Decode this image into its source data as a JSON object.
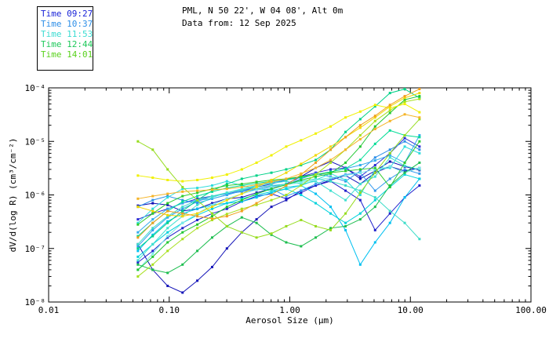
{
  "header": {
    "line1": "PML, N 50 22', W 04 08', Alt 0m",
    "line2": "Data from: 12 Sep 2025"
  },
  "legend": {
    "items": [
      {
        "label": "Time 09:27",
        "color": "#1A24D8"
      },
      {
        "label": "Time 10:37",
        "color": "#2E8FE8"
      },
      {
        "label": "Time 11:53",
        "color": "#3CDCD2"
      },
      {
        "label": "Time 12:44",
        "color": "#1EC85A"
      },
      {
        "label": "Time 14:01",
        "color": "#5AD21E"
      }
    ]
  },
  "chart_data": {
    "type": "line",
    "title": "PML, N 50 22', W 04 08', Alt 0m",
    "subtitle": "Data from: 12 Sep 2025",
    "xlabel": "Aerosol Size (μm)",
    "ylabel": "dV/d(log R) (cm³/cm⁻²)",
    "x_scale": "log",
    "y_scale": "log",
    "xlim": [
      0.01,
      100
    ],
    "ylim": [
      1e-08,
      0.0001
    ],
    "grid": false,
    "legend_position": "top-left",
    "x_ticks": [
      {
        "v": 0.01,
        "label": "0.01"
      },
      {
        "v": 0.1,
        "label": "0.10"
      },
      {
        "v": 1.0,
        "label": "1.00"
      },
      {
        "v": 10.0,
        "label": "10.00"
      },
      {
        "v": 100.0,
        "label": "100.00"
      }
    ],
    "y_ticks": [
      {
        "v": 0.0001,
        "label": "10⁻⁴"
      },
      {
        "v": 1e-05,
        "label": "10⁻⁵"
      },
      {
        "v": 1e-06,
        "label": "10⁻⁶"
      },
      {
        "v": 1e-07,
        "label": "10⁻⁷"
      },
      {
        "v": 1e-08,
        "label": "10⁻⁸"
      }
    ],
    "x": [
      0.055,
      0.073,
      0.097,
      0.129,
      0.171,
      0.227,
      0.301,
      0.4,
      0.53,
      0.704,
      0.934,
      1.24,
      1.64,
      2.18,
      2.9,
      3.84,
      5.1,
      6.77,
      8.98,
      11.9
    ],
    "series": [
      {
        "name": "navy-dip",
        "color": "#1414B8",
        "values": [
          1.2e-07,
          4e-08,
          2e-08,
          1.5e-08,
          2.5e-08,
          4.5e-08,
          1e-07,
          2e-07,
          3.5e-07,
          6e-07,
          8e-07,
          1.2e-06,
          1.5e-06,
          1.9e-06,
          2.3e-06,
          1.6e-06,
          2.6e-06,
          3.4e-06,
          2.8e-06,
          3.2e-06
        ]
      },
      {
        "name": "navy-2",
        "color": "#0F0FB4",
        "values": [
          6.3e-07,
          7e-07,
          6.5e-07,
          5e-07,
          5.5e-07,
          7e-07,
          8.5e-07,
          9e-07,
          1.1e-06,
          1.3e-06,
          1.6e-06,
          2.2e-06,
          3.2e-06,
          4.2e-06,
          3.2e-06,
          2e-06,
          2.8e-06,
          4.2e-06,
          3.4e-06,
          2.9e-06
        ]
      },
      {
        "name": "navy-3",
        "color": "#2020CC",
        "values": [
          5.5e-08,
          9e-08,
          1.6e-07,
          2.4e-07,
          3.4e-07,
          4.5e-07,
          5.5e-07,
          7.5e-07,
          9.5e-07,
          1.05e-06,
          8.5e-07,
          1.1e-06,
          1.5e-06,
          1.8e-06,
          1.2e-06,
          8e-07,
          2.2e-07,
          4.5e-07,
          9e-07,
          1.5e-06
        ]
      },
      {
        "name": "navy-4",
        "color": "#2B2BD4",
        "values": [
          3.5e-07,
          4.5e-07,
          5.5e-07,
          7e-07,
          8.5e-07,
          9.5e-07,
          1.05e-06,
          1.2e-06,
          1.4e-06,
          1.6e-06,
          1.9e-06,
          2.2e-06,
          2.6e-06,
          3e-06,
          3.2e-06,
          2.2e-06,
          3.6e-06,
          6e-06,
          1.15e-05,
          8e-06
        ]
      },
      {
        "name": "dodger-1",
        "color": "#2E8FE8",
        "values": [
          6e-07,
          8e-07,
          9.5e-07,
          8e-07,
          7e-07,
          8.5e-07,
          1e-06,
          1.2e-06,
          1.3e-06,
          1.45e-06,
          1.55e-06,
          2e-06,
          2.5e-06,
          2.2e-06,
          1.8e-06,
          2.8e-06,
          5e-06,
          7e-06,
          1e-05,
          7e-06
        ]
      },
      {
        "name": "dodger-2",
        "color": "#3399EE",
        "values": [
          1.1e-07,
          2.2e-07,
          3.8e-07,
          5.5e-07,
          7.5e-07,
          9.5e-07,
          1.05e-06,
          1.15e-06,
          1.25e-06,
          1.3e-06,
          9.5e-07,
          1.2e-06,
          1.6e-06,
          2e-06,
          2.4e-06,
          2.6e-06,
          1.2e-06,
          2e-06,
          3e-06,
          2.5e-06
        ]
      },
      {
        "name": "lightblue",
        "color": "#33AAEE",
        "values": [
          2e-07,
          3.5e-07,
          5.5e-07,
          7e-07,
          8e-07,
          8.5e-07,
          1e-06,
          1.2e-06,
          1.5e-06,
          1.7e-06,
          1.9e-06,
          2.1e-06,
          2.4e-06,
          2.7e-06,
          3.1e-06,
          3.6e-06,
          4.4e-06,
          5.5e-06,
          4e-06,
          1.3e-05
        ]
      },
      {
        "name": "aqua-dip",
        "color": "#00C0F0",
        "values": [
          9e-08,
          1.8e-07,
          3.2e-07,
          4.5e-07,
          5.5e-07,
          6.5e-07,
          7e-07,
          7.5e-07,
          9e-07,
          1.1e-06,
          1.3e-06,
          1.5e-06,
          1.05e-06,
          6e-07,
          2.2e-07,
          5e-08,
          1.3e-07,
          3e-07,
          9e-07,
          2e-06
        ]
      },
      {
        "name": "aqua-2",
        "color": "#00D2DC",
        "values": [
          7e-08,
          1.2e-07,
          2e-07,
          3e-07,
          4.2e-07,
          5.5e-07,
          7e-07,
          8.5e-07,
          1e-06,
          1.15e-06,
          1.3e-06,
          1e-06,
          7e-07,
          4.5e-07,
          3e-07,
          4.5e-07,
          8e-07,
          1.4e-06,
          2.4e-06,
          2e-06
        ]
      },
      {
        "name": "cyan-1",
        "color": "#2EDCDC",
        "values": [
          3e-07,
          5.5e-07,
          9e-07,
          1.3e-06,
          1.35e-06,
          1.5e-06,
          1.8e-06,
          1.5e-06,
          1.3e-06,
          1.2e-06,
          1.4e-06,
          1.5e-06,
          1.9e-06,
          2.5e-06,
          1.9e-06,
          1e-06,
          3e-06,
          3.2e-06,
          8e-06,
          6e-06
        ]
      },
      {
        "name": "turq-tail",
        "color": "#3CDCC8",
        "values": [
          1.2e-07,
          2.4e-07,
          4e-07,
          6e-07,
          8e-07,
          9.5e-07,
          1.1e-06,
          1.25e-06,
          1.4e-06,
          1.5e-06,
          1.6e-06,
          1.8e-06,
          2e-06,
          1.8e-06,
          1.5e-06,
          1.2e-06,
          9e-07,
          5e-07,
          3e-07,
          1.5e-07
        ]
      },
      {
        "name": "turq-2",
        "color": "#40E0D0",
        "values": [
          6e-08,
          1.2e-07,
          2.4e-07,
          4e-07,
          6.5e-07,
          9e-07,
          1.1e-06,
          1.3e-06,
          1.5e-06,
          1.65e-06,
          1.8e-06,
          1.6e-06,
          1.8e-06,
          1.2e-06,
          8e-07,
          1.6e-06,
          2.2e-06,
          5e-06,
          3.5e-06,
          3e-06
        ]
      },
      {
        "name": "palecyan",
        "color": "#7AE8E8",
        "values": [
          4e-08,
          8e-08,
          1.7e-07,
          3e-07,
          4.5e-07,
          6.5e-07,
          8.5e-07,
          1.05e-06,
          1.25e-06,
          1.4e-06,
          1.55e-06,
          1.7e-06,
          1.9e-06,
          2.1e-06,
          2.3e-06,
          2.6e-06,
          3e-06,
          3.4e-06,
          2.6e-06,
          3.2e-06
        ]
      },
      {
        "name": "spring-1",
        "color": "#00DC96",
        "values": [
          1.7e-07,
          3e-07,
          5e-07,
          7.5e-07,
          9.5e-07,
          1.15e-06,
          1.35e-06,
          1.5e-06,
          1.65e-06,
          1.8e-06,
          1.95e-06,
          2.1e-06,
          2.4e-06,
          2.7e-06,
          3.1e-06,
          4.5e-06,
          9e-06,
          1.6e-05,
          1.3e-05,
          1.2e-05
        ]
      },
      {
        "name": "spring-2",
        "color": "#00D287",
        "values": [
          1e-07,
          1.7e-07,
          3e-07,
          5e-07,
          8e-07,
          1.2e-06,
          1.6e-06,
          2e-06,
          2.3e-06,
          2.6e-06,
          3e-06,
          3.6e-06,
          4.5e-06,
          7e-06,
          1.5e-05,
          2.6e-05,
          4.5e-05,
          8e-05,
          9.5e-05,
          6.5e-05
        ]
      },
      {
        "name": "green-1",
        "color": "#22C832",
        "values": [
          4e-08,
          7e-08,
          1.3e-07,
          2e-07,
          2.8e-07,
          4e-07,
          6e-07,
          8e-07,
          1.05e-06,
          1.3e-06,
          1.55e-06,
          1.9e-06,
          2.2e-06,
          2.5e-06,
          4e-06,
          8e-06,
          1.9e-05,
          3.4e-05,
          6e-05,
          7e-05
        ]
      },
      {
        "name": "green-2",
        "color": "#2ECC2E",
        "values": [
          2.8e-07,
          4.5e-07,
          7e-07,
          9.5e-07,
          1.1e-06,
          1.3e-06,
          1.5e-06,
          1.6e-06,
          1.75e-06,
          1.9e-06,
          2e-06,
          2.2e-06,
          2.4e-06,
          2.6e-06,
          2.8e-06,
          3e-06,
          3.2e-06,
          1.4e-06,
          4e-06,
          1e-05
        ]
      },
      {
        "name": "green-dip",
        "color": "#1EBE50",
        "values": [
          5e-08,
          4e-08,
          3.5e-08,
          5e-08,
          9e-08,
          1.6e-07,
          2.6e-07,
          3.8e-07,
          3e-07,
          1.8e-07,
          1.3e-07,
          1.1e-07,
          1.6e-07,
          2.4e-07,
          2.6e-07,
          3.5e-07,
          6e-07,
          1.5e-06,
          2.6e-06,
          4e-06
        ]
      },
      {
        "name": "ygreen-desc",
        "color": "#96DC1E",
        "values": [
          1e-05,
          7e-06,
          3e-06,
          1.4e-06,
          8e-07,
          4.5e-07,
          2.6e-07,
          2e-07,
          1.6e-07,
          1.9e-07,
          2.6e-07,
          3.4e-07,
          2.6e-07,
          2.2e-07,
          4.5e-07,
          1.1e-06,
          2.6e-06,
          6e-06,
          1.3e-05,
          2.6e-05
        ]
      },
      {
        "name": "ygreen-rise",
        "color": "#A8E020",
        "values": [
          3e-08,
          5e-08,
          9e-08,
          1.5e-07,
          2.4e-07,
          3.4e-07,
          4.4e-07,
          5.5e-07,
          6.5e-07,
          8e-07,
          1e-06,
          1.5e-06,
          2.4e-06,
          4e-06,
          7e-06,
          1.3e-05,
          2.4e-05,
          3.8e-05,
          5.5e-05,
          6.2e-05
        ]
      },
      {
        "name": "yellow-1",
        "color": "#F0F000",
        "values": [
          2.3e-06,
          2.1e-06,
          1.9e-06,
          1.8e-06,
          1.9e-06,
          2.1e-06,
          2.4e-06,
          3e-06,
          4e-06,
          5.5e-06,
          8e-06,
          1.05e-05,
          1.4e-05,
          1.9e-05,
          2.8e-05,
          3.6e-05,
          4.8e-05,
          4.2e-05,
          5e-05,
          3.5e-05
        ]
      },
      {
        "name": "gold-1",
        "color": "#F0D800",
        "values": [
          6e-07,
          5e-07,
          4.2e-07,
          4e-07,
          4.5e-07,
          6e-07,
          8e-07,
          1.05e-06,
          1.4e-06,
          1.9e-06,
          2.6e-06,
          3.8e-06,
          5.5e-06,
          8e-06,
          1.2e-05,
          1.8e-05,
          2.8e-05,
          4.5e-05,
          6.5e-05,
          8e-05
        ]
      },
      {
        "name": "orange-1",
        "color": "#F0A01E",
        "values": [
          1.6e-07,
          3e-07,
          5e-07,
          4.5e-07,
          4e-07,
          3.6e-07,
          4e-07,
          5e-07,
          7e-07,
          1e-06,
          1.5e-06,
          2.4e-06,
          4e-06,
          7e-06,
          1.2e-05,
          2e-05,
          3e-05,
          4.8e-05,
          7e-05,
          9.5e-05
        ]
      },
      {
        "name": "orange-2",
        "color": "#F5B428",
        "values": [
          8.5e-07,
          9.5e-07,
          1.05e-06,
          1.15e-06,
          1.2e-06,
          1.25e-06,
          1.3e-06,
          1.4e-06,
          1.55e-06,
          1.75e-06,
          2e-06,
          2.5e-06,
          3.2e-06,
          4.5e-06,
          7e-06,
          1.1e-05,
          1.7e-05,
          2.4e-05,
          3.2e-05,
          2.8e-05
        ]
      }
    ]
  }
}
